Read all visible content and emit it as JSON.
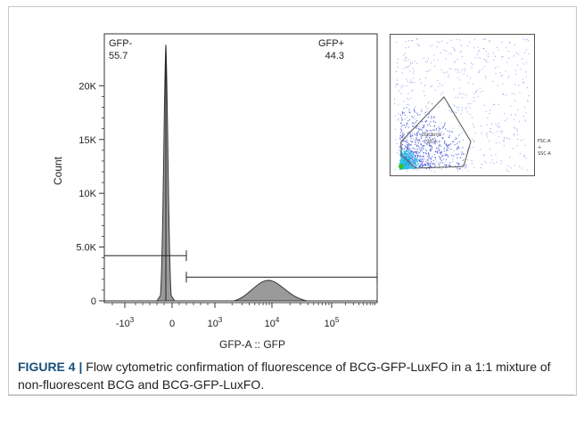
{
  "chart_data": [
    {
      "type": "histogram",
      "xlabel": "GFP-A :: GFP",
      "ylabel": "Count",
      "y_ticks": [
        0,
        5000,
        10000,
        15000,
        20000
      ],
      "y_tick_labels": [
        "0",
        "5.0K",
        "10K",
        "15K",
        "20K"
      ],
      "ylim": [
        0,
        24000
      ],
      "x_scale": "biexponential",
      "x_tick_labels": [
        {
          "base": "-10",
          "exp": "3"
        },
        {
          "base": "0",
          "exp": ""
        },
        {
          "base": "10",
          "exp": "3"
        },
        {
          "base": "10",
          "exp": "4"
        },
        {
          "base": "10",
          "exp": "5"
        }
      ],
      "gates": [
        {
          "name": "GFP-",
          "value": "55.7",
          "label_position": "top-left"
        },
        {
          "name": "GFP+",
          "value": "44.3",
          "label_position": "top-right"
        }
      ],
      "peaks": [
        {
          "x": "0",
          "count": 23800
        },
        {
          "x": "~5000",
          "count": 1900
        }
      ]
    },
    {
      "type": "scatter",
      "x_axis_label": [
        "FSC-A",
        "+",
        "SSC-A"
      ],
      "gate_name": "Bacteria",
      "gate_value": "95.4",
      "colors": {
        "sparse": "#3b4fd8",
        "dense": "#1ec8e8",
        "core": "#3fbf2a"
      }
    }
  ],
  "caption": {
    "figure_label": "FIGURE 4 |",
    "text": " Flow cytometric confirmation of fluorescence of BCG-GFP-LuxFO in a 1:1 mixture of non-fluorescent BCG and BCG-GFP-LuxFO."
  }
}
